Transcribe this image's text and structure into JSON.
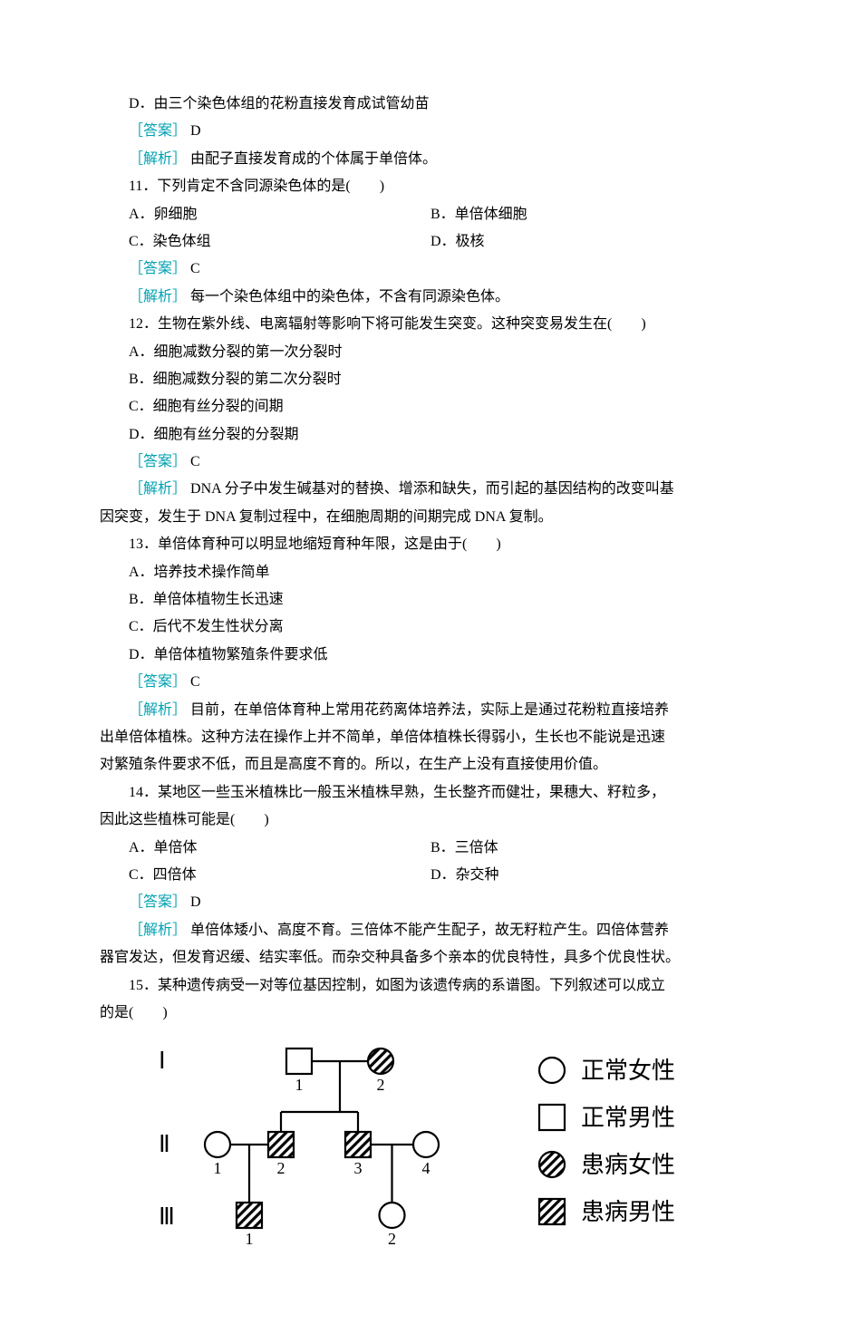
{
  "q10": {
    "optD": "D．由三个染色体组的花粉直接发育成试管幼苗",
    "ansLabel": "［答案］",
    "ansLetter": " D",
    "anaLabel": "［解析］",
    "anaText": " 由配子直接发育成的个体属于单倍体。"
  },
  "q11": {
    "stem": "11．下列肯定不含同源染色体的是(　　)",
    "optA": "A．卵细胞",
    "optB": "B．单倍体细胞",
    "optC": "C．染色体组",
    "optD": "D．极核",
    "ansLabel": "［答案］",
    "ansLetter": " C",
    "anaLabel": "［解析］",
    "anaText": " 每一个染色体组中的染色体，不含有同源染色体。"
  },
  "q12": {
    "stem": "12．生物在紫外线、电离辐射等影响下将可能发生突变。这种突变易发生在(　　)",
    "optA": "A．细胞减数分裂的第一次分裂时",
    "optB": "B．细胞减数分裂的第二次分裂时",
    "optC": "C．细胞有丝分裂的间期",
    "optD": "D．细胞有丝分裂的分裂期",
    "ansLabel": "［答案］",
    "ansLetter": " C",
    "anaLabel": "［解析］",
    "anaText1": " DNA 分子中发生碱基对的替换、增添和缺失，而引起的基因结构的改变叫基",
    "anaText2": "因突变，发生于 DNA 复制过程中，在细胞周期的间期完成 DNA 复制。"
  },
  "q13": {
    "stem": "13．单倍体育种可以明显地缩短育种年限，这是由于(　　)",
    "optA": "A．培养技术操作简单",
    "optB": "B．单倍体植物生长迅速",
    "optC": "C．后代不发生性状分离",
    "optD": "D．单倍体植物繁殖条件要求低",
    "ansLabel": "［答案］",
    "ansLetter": " C",
    "anaLabel": "［解析］",
    "anaText1": " 目前，在单倍体育种上常用花药离体培养法，实际上是通过花粉粒直接培养",
    "anaText2": "出单倍体植株。这种方法在操作上并不简单，单倍体植株长得弱小，生长也不能说是迅速",
    "anaText3": "对繁殖条件要求不低，而且是高度不育的。所以，在生产上没有直接使用价值。"
  },
  "q14": {
    "stem1": "14．某地区一些玉米植株比一般玉米植株早熟，生长整齐而健壮，果穗大、籽粒多，",
    "stem2": "因此这些植株可能是(　　)",
    "optA": "A．单倍体",
    "optB": "B．三倍体",
    "optC": "C．四倍体",
    "optD": "D．杂交种",
    "ansLabel": "［答案］",
    "ansLetter": " D",
    "anaLabel": "［解析］",
    "anaText1": " 单倍体矮小、高度不育。三倍体不能产生配子，故无籽粒产生。四倍体营养",
    "anaText2": "器官发达，但发育迟缓、结实率低。而杂交种具备多个亲本的优良特性，具多个优良性状。"
  },
  "q15": {
    "stem1": "15．某种遗传病受一对等位基因控制，如图为该遗传病的系谱图。下列叙述可以成立",
    "stem2": "的是(　　)"
  },
  "pedigree": {
    "gens": [
      "Ⅰ",
      "Ⅱ",
      "Ⅲ"
    ],
    "nums": [
      "1",
      "2",
      "1",
      "2",
      "3",
      "4",
      "1",
      "2"
    ],
    "legend": {
      "normalFemale": "正常女性",
      "normalMale": "正常男性",
      "affectedFemale": "患病女性",
      "affectedMale": "患病男性"
    },
    "colors": {
      "stroke": "#000000",
      "hatch": "#000000",
      "bg": "#ffffff",
      "text": "#000000",
      "legendText": "#000000"
    },
    "legendFontSize": 26,
    "genFontSize": 26,
    "numFontSize": 18,
    "strokeWidth": 2.2
  }
}
